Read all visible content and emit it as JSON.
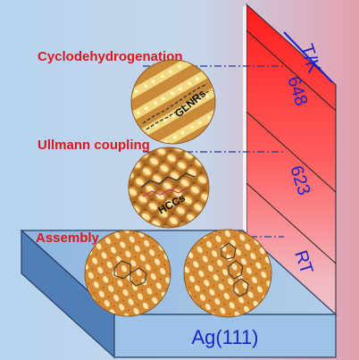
{
  "steps": {
    "top": "Cyclodehydrogenation",
    "middle": "Ullmann coupling",
    "bottom": "Assembly"
  },
  "axis_label": "T/K",
  "temperatures": {
    "high": "648",
    "mid": "623",
    "low": "RT"
  },
  "labels": {
    "top": "GLNRs",
    "middle": "HCCs"
  },
  "substrate": "Ag(111)",
  "colors": {
    "step_text": "#e0161d",
    "temp_text": "#1a23c8",
    "gradient_hot": "#ff2a2a",
    "background_left": "#b9d6ee",
    "background_right": "#e2a4b2",
    "slab": "#9ec3e8"
  }
}
